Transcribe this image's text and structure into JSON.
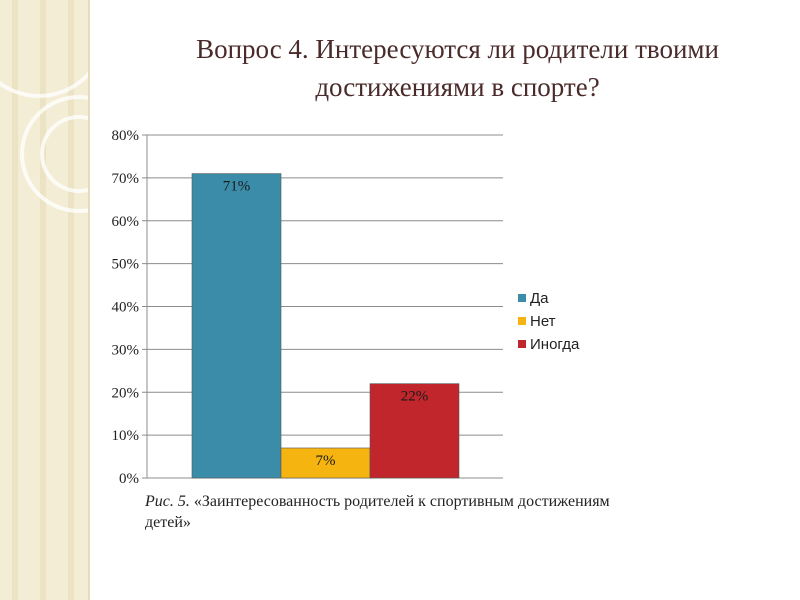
{
  "title": "Вопрос 4. Интересуются ли родители твоими достижениями в спорте?",
  "caption": {
    "fig": "Рис. 5.",
    "text": "«Заинтересованность родителей к спортивным достижениям детей»"
  },
  "colors": {
    "title": "#4a2a2a",
    "grid": "#8c8c8c",
    "background_band": "#f4edd6"
  },
  "chart_data": {
    "type": "bar",
    "categories": [
      "Да",
      "Нет",
      "Иногда"
    ],
    "values": [
      71,
      7,
      22
    ],
    "data_labels": [
      "71%",
      "7%",
      "22%"
    ],
    "colors": [
      "#3b8ca9",
      "#f5b40f",
      "#c0262b"
    ],
    "ylim": [
      0,
      80
    ],
    "yticks": [
      0,
      10,
      20,
      30,
      40,
      50,
      60,
      70,
      80
    ],
    "ytick_labels": [
      "0%",
      "10%",
      "20%",
      "30%",
      "40%",
      "50%",
      "60%",
      "70%",
      "80%"
    ],
    "grid": true,
    "legend": {
      "position": "right",
      "entries": [
        "Да",
        "Нет",
        "Иногда"
      ]
    }
  }
}
